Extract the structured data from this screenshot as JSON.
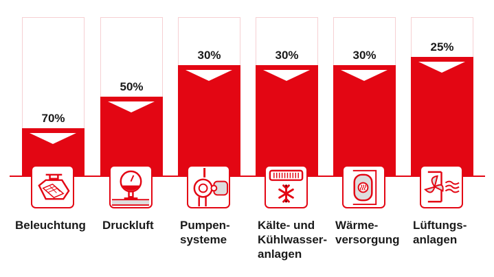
{
  "chart_data": {
    "type": "bar",
    "title": "",
    "xlabel": "",
    "ylabel": "",
    "ylim": [
      0,
      100
    ],
    "note": "red fill shows remaining share (100 - saving)",
    "categories": [
      "Beleuchtung",
      "Druckluft",
      "Pumpen-\nsysteme",
      "Kälte- und\nKühlwasser-\nanlagen",
      "Wärme-\nversorgung",
      "Lüftungs-\nanlagen"
    ],
    "values": [
      70,
      50,
      30,
      30,
      30,
      25
    ],
    "value_labels": [
      "70%",
      "50%",
      "30%",
      "30%",
      "30%",
      "25%"
    ],
    "icons": [
      "ceiling-light-icon",
      "pressure-gauge-icon",
      "pump-icon",
      "refrigeration-icon",
      "heat-tank-icon",
      "ventilation-fan-icon"
    ],
    "colors": {
      "bar": "#e30613",
      "frame": "#f6cfd2",
      "text": "#1a1a1a"
    }
  }
}
